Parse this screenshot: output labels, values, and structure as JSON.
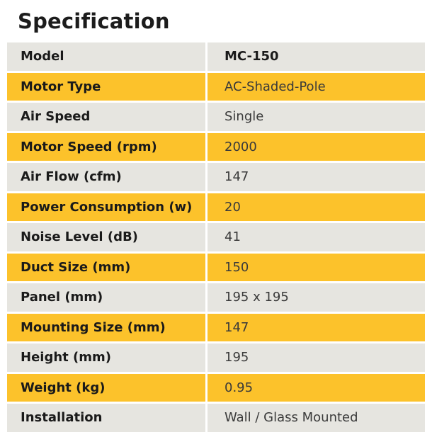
{
  "title": "Specification",
  "colors": {
    "row_grey": "#e6e5e0",
    "row_yellow": "#fcc22b"
  },
  "rows": [
    {
      "label": "Model",
      "value": "MC-150"
    },
    {
      "label": "Motor Type",
      "value": "AC-Shaded-Pole"
    },
    {
      "label": "Air Speed",
      "value": "Single"
    },
    {
      "label": "Motor Speed (rpm)",
      "value": "2000"
    },
    {
      "label": "Air Flow (cfm)",
      "value": "147"
    },
    {
      "label": "Power Consumption (w)",
      "value": "20"
    },
    {
      "label": "Noise Level (dB)",
      "value": "41"
    },
    {
      "label": "Duct Size (mm)",
      "value": "150"
    },
    {
      "label": "Panel (mm)",
      "value": "195 x 195"
    },
    {
      "label": "Mounting Size (mm)",
      "value": "147"
    },
    {
      "label": "Height (mm)",
      "value": "195"
    },
    {
      "label": "Weight (kg)",
      "value": "0.95"
    },
    {
      "label": "Installation",
      "value": "Wall / Glass Mounted"
    }
  ]
}
